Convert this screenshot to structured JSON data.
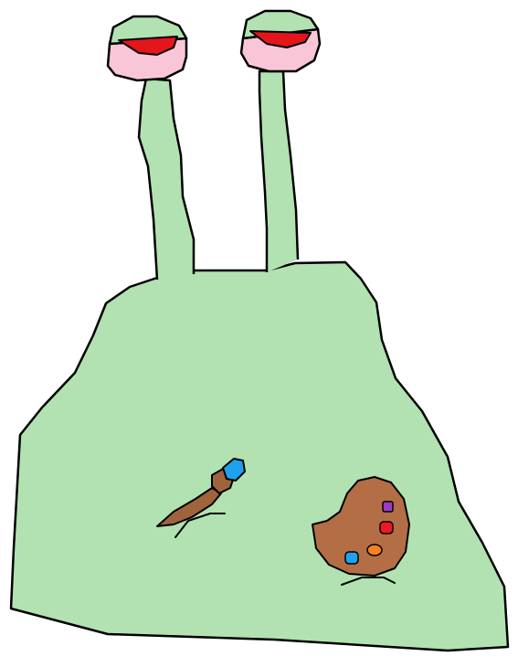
{
  "scene": {
    "subject": "green-blob-creature-with-eye-stalks",
    "colors": {
      "background": "#ffffff",
      "body": "#b2e2b2",
      "outline": "#000000",
      "eye_cup": "#f9c6d8",
      "eye_red": "#e4161c",
      "brush_handle": "#a0643c",
      "brush_tip": "#1fa2ee",
      "palette": "#b36e45",
      "paint_purple": "#9b3bc4",
      "paint_red": "#ef1726",
      "paint_orange": "#f5821f",
      "paint_blue": "#1fa2ee"
    },
    "icons": {
      "paintbrush": "paintbrush-icon",
      "palette": "palette-icon"
    }
  }
}
